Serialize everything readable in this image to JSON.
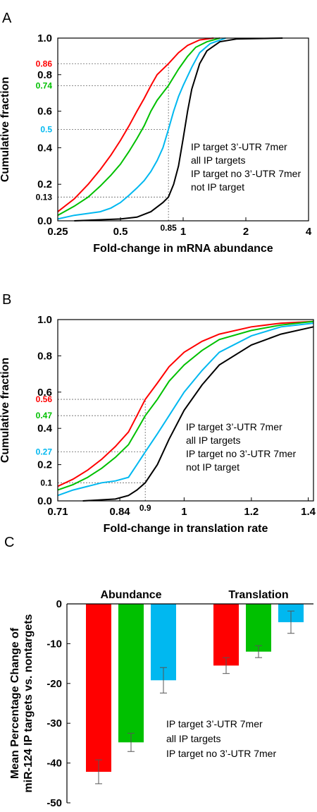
{
  "colors": {
    "red": "#ff0000",
    "green": "#00c000",
    "cyan": "#00b8f0",
    "black": "#000000"
  },
  "chart_data": [
    {
      "panel_label": "A",
      "type": "line",
      "xscale": "log2",
      "xlabel": "Fold-change in mRNA abundance",
      "ylabel": "Cumulative fraction",
      "xlim": [
        0.25,
        4
      ],
      "ylim": [
        0,
        1
      ],
      "x_ticks": [
        "0.25",
        "0.5",
        "1",
        "2",
        "4"
      ],
      "x_tick_values": [
        0.25,
        0.5,
        1,
        2,
        4
      ],
      "y_ticks": [
        "0.0",
        "0.2",
        "0.4",
        "0.6",
        "0.8",
        "1.0"
      ],
      "y_tick_values": [
        0,
        0.2,
        0.4,
        0.6,
        0.8,
        1.0
      ],
      "annotations": {
        "x_marker": {
          "label": "0.85",
          "value": 0.85
        },
        "y_markers": [
          {
            "label": "0.86",
            "value": 0.86,
            "color": "red"
          },
          {
            "label": "0.74",
            "value": 0.74,
            "color": "green"
          },
          {
            "label": "0.5",
            "value": 0.5,
            "color": "cyan"
          },
          {
            "label": "0.13",
            "value": 0.13,
            "color": "black"
          }
        ]
      },
      "legend": [
        {
          "label": "IP target 3’-UTR 7mer",
          "color": "red"
        },
        {
          "label": "all IP targets",
          "color": "green"
        },
        {
          "label": "IP target no 3’-UTR 7mer",
          "color": "cyan"
        },
        {
          "label": "not IP target",
          "color": "black"
        }
      ],
      "series": [
        {
          "color": "red",
          "points": [
            [
              0.25,
              0.05
            ],
            [
              0.3,
              0.12
            ],
            [
              0.35,
              0.2
            ],
            [
              0.4,
              0.28
            ],
            [
              0.45,
              0.36
            ],
            [
              0.5,
              0.44
            ],
            [
              0.55,
              0.52
            ],
            [
              0.6,
              0.6
            ],
            [
              0.65,
              0.67
            ],
            [
              0.7,
              0.74
            ],
            [
              0.75,
              0.8
            ],
            [
              0.85,
              0.86
            ],
            [
              0.95,
              0.92
            ],
            [
              1.05,
              0.96
            ],
            [
              1.2,
              0.99
            ],
            [
              1.4,
              1.0
            ]
          ]
        },
        {
          "color": "green",
          "points": [
            [
              0.25,
              0.03
            ],
            [
              0.3,
              0.08
            ],
            [
              0.35,
              0.13
            ],
            [
              0.4,
              0.19
            ],
            [
              0.45,
              0.25
            ],
            [
              0.5,
              0.31
            ],
            [
              0.55,
              0.38
            ],
            [
              0.6,
              0.45
            ],
            [
              0.65,
              0.52
            ],
            [
              0.7,
              0.6
            ],
            [
              0.75,
              0.66
            ],
            [
              0.85,
              0.74
            ],
            [
              0.95,
              0.83
            ],
            [
              1.05,
              0.9
            ],
            [
              1.15,
              0.95
            ],
            [
              1.3,
              0.98
            ],
            [
              1.5,
              1.0
            ]
          ]
        },
        {
          "color": "cyan",
          "points": [
            [
              0.25,
              0.01
            ],
            [
              0.3,
              0.03
            ],
            [
              0.4,
              0.05
            ],
            [
              0.45,
              0.07
            ],
            [
              0.5,
              0.1
            ],
            [
              0.55,
              0.14
            ],
            [
              0.6,
              0.18
            ],
            [
              0.65,
              0.22
            ],
            [
              0.7,
              0.27
            ],
            [
              0.75,
              0.33
            ],
            [
              0.8,
              0.4
            ],
            [
              0.85,
              0.5
            ],
            [
              0.9,
              0.6
            ],
            [
              0.95,
              0.68
            ],
            [
              1.0,
              0.74
            ],
            [
              1.1,
              0.84
            ],
            [
              1.2,
              0.92
            ],
            [
              1.35,
              0.97
            ],
            [
              1.6,
              1.0
            ]
          ]
        },
        {
          "color": "black",
          "points": [
            [
              0.3,
              0.0
            ],
            [
              0.5,
              0.01
            ],
            [
              0.6,
              0.02
            ],
            [
              0.7,
              0.05
            ],
            [
              0.8,
              0.1
            ],
            [
              0.85,
              0.13
            ],
            [
              0.9,
              0.2
            ],
            [
              0.95,
              0.3
            ],
            [
              1.0,
              0.45
            ],
            [
              1.05,
              0.6
            ],
            [
              1.1,
              0.72
            ],
            [
              1.2,
              0.86
            ],
            [
              1.3,
              0.93
            ],
            [
              1.5,
              0.98
            ],
            [
              1.8,
              0.995
            ],
            [
              3.0,
              1.0
            ]
          ]
        }
      ]
    },
    {
      "panel_label": "B",
      "type": "line",
      "xscale": "log",
      "xlabel": "Fold-change in translation rate",
      "ylabel": "Cumulative fraction",
      "xlim": [
        0.71,
        1.42
      ],
      "ylim": [
        0,
        1
      ],
      "x_ticks": [
        "0.71",
        "0.84",
        "1",
        "1.2",
        "1.4"
      ],
      "x_tick_values": [
        0.71,
        0.84,
        1,
        1.2,
        1.4
      ],
      "y_ticks": [
        "0.0",
        "0.2",
        "0.4",
        "0.6",
        "0.8",
        "1.0"
      ],
      "y_tick_values": [
        0,
        0.2,
        0.4,
        0.6,
        0.8,
        1.0
      ],
      "annotations": {
        "x_marker": {
          "label": "0.9",
          "value": 0.9
        },
        "y_markers": [
          {
            "label": "0.56",
            "value": 0.56,
            "color": "red"
          },
          {
            "label": "0.47",
            "value": 0.47,
            "color": "green"
          },
          {
            "label": "0.27",
            "value": 0.27,
            "color": "cyan"
          },
          {
            "label": "0.1",
            "value": 0.1,
            "color": "black"
          }
        ]
      },
      "legend": [
        {
          "label": "IP target 3’-UTR 7mer",
          "color": "red"
        },
        {
          "label": "all IP targets",
          "color": "green"
        },
        {
          "label": "IP target no 3’-UTR 7mer",
          "color": "cyan"
        },
        {
          "label": "not IP target",
          "color": "black"
        }
      ],
      "series": [
        {
          "color": "red",
          "points": [
            [
              0.71,
              0.08
            ],
            [
              0.74,
              0.12
            ],
            [
              0.77,
              0.17
            ],
            [
              0.8,
              0.23
            ],
            [
              0.83,
              0.3
            ],
            [
              0.86,
              0.38
            ],
            [
              0.88,
              0.47
            ],
            [
              0.9,
              0.56
            ],
            [
              0.93,
              0.65
            ],
            [
              0.96,
              0.74
            ],
            [
              1.0,
              0.82
            ],
            [
              1.05,
              0.88
            ],
            [
              1.1,
              0.92
            ],
            [
              1.2,
              0.96
            ],
            [
              1.3,
              0.98
            ],
            [
              1.42,
              0.99
            ]
          ]
        },
        {
          "color": "green",
          "points": [
            [
              0.71,
              0.06
            ],
            [
              0.74,
              0.09
            ],
            [
              0.77,
              0.13
            ],
            [
              0.8,
              0.18
            ],
            [
              0.83,
              0.24
            ],
            [
              0.86,
              0.31
            ],
            [
              0.88,
              0.39
            ],
            [
              0.9,
              0.47
            ],
            [
              0.93,
              0.56
            ],
            [
              0.96,
              0.66
            ],
            [
              1.0,
              0.75
            ],
            [
              1.05,
              0.83
            ],
            [
              1.1,
              0.89
            ],
            [
              1.2,
              0.94
            ],
            [
              1.3,
              0.97
            ],
            [
              1.42,
              0.99
            ]
          ]
        },
        {
          "color": "cyan",
          "points": [
            [
              0.71,
              0.03
            ],
            [
              0.74,
              0.06
            ],
            [
              0.77,
              0.08
            ],
            [
              0.8,
              0.1
            ],
            [
              0.83,
              0.11
            ],
            [
              0.86,
              0.13
            ],
            [
              0.88,
              0.2
            ],
            [
              0.9,
              0.27
            ],
            [
              0.93,
              0.37
            ],
            [
              0.96,
              0.47
            ],
            [
              1.0,
              0.6
            ],
            [
              1.05,
              0.72
            ],
            [
              1.1,
              0.82
            ],
            [
              1.2,
              0.91
            ],
            [
              1.3,
              0.96
            ],
            [
              1.42,
              0.98
            ]
          ]
        },
        {
          "color": "black",
          "points": [
            [
              0.76,
              0.0
            ],
            [
              0.83,
              0.01
            ],
            [
              0.86,
              0.03
            ],
            [
              0.88,
              0.06
            ],
            [
              0.9,
              0.1
            ],
            [
              0.93,
              0.2
            ],
            [
              0.96,
              0.34
            ],
            [
              1.0,
              0.5
            ],
            [
              1.05,
              0.64
            ],
            [
              1.1,
              0.75
            ],
            [
              1.2,
              0.86
            ],
            [
              1.3,
              0.92
            ],
            [
              1.42,
              0.96
            ]
          ]
        }
      ]
    },
    {
      "panel_label": "C",
      "type": "bar",
      "ylabel_lines": [
        "Mean Percentage Change of",
        "miR-124 IP targets vs. nontargets"
      ],
      "ylim": [
        -50,
        0
      ],
      "y_ticks": [
        "0",
        "-10",
        "-20",
        "-30",
        "-40",
        "-50"
      ],
      "y_tick_values": [
        0,
        -10,
        -20,
        -30,
        -40,
        -50
      ],
      "categories": [
        "Abundance",
        "Translation"
      ],
      "legend": [
        {
          "label": "IP target 3’-UTR 7mer",
          "color": "red"
        },
        {
          "label": "all IP targets",
          "color": "green"
        },
        {
          "label": "IP target no 3’-UTR 7mer",
          "color": "cyan"
        }
      ],
      "series": [
        {
          "color": "red",
          "values": [
            -42.2,
            -15.5
          ],
          "errors": [
            3.0,
            2.0
          ]
        },
        {
          "color": "green",
          "values": [
            -34.8,
            -12.0
          ],
          "errors": [
            2.3,
            1.5
          ]
        },
        {
          "color": "cyan",
          "values": [
            -19.2,
            -4.6
          ],
          "errors": [
            3.2,
            2.8
          ]
        }
      ]
    }
  ]
}
